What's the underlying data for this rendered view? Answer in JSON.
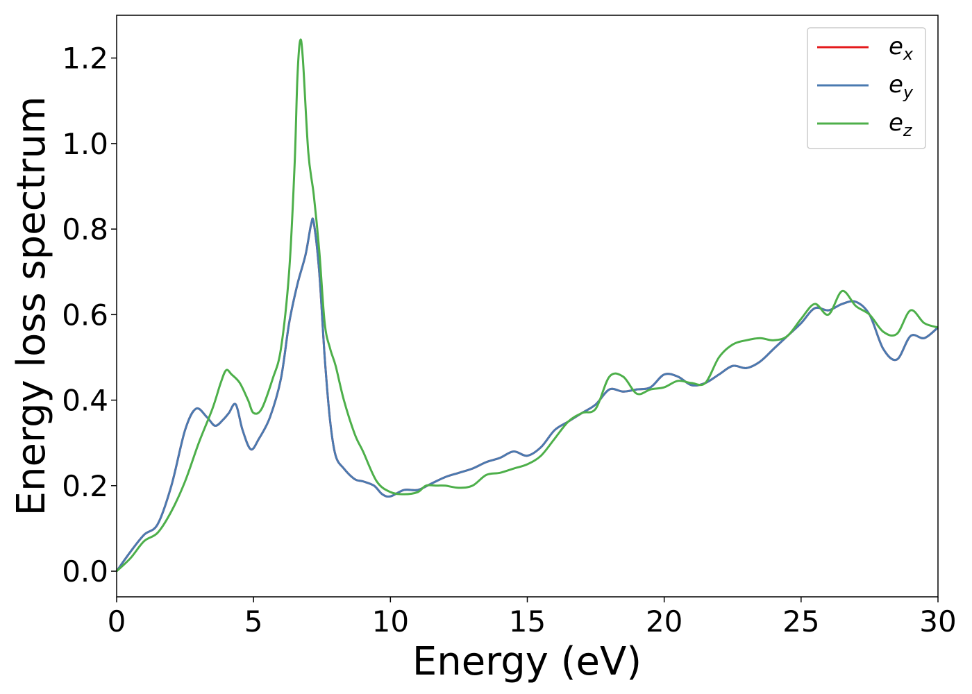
{
  "chart_data": {
    "type": "line",
    "title": "",
    "xlabel": "Energy (eV)",
    "ylabel": "Energy loss spectrum",
    "xlim": [
      0,
      30
    ],
    "ylim": [
      -0.06,
      1.3
    ],
    "xticks": [
      0,
      5,
      10,
      15,
      20,
      25,
      30
    ],
    "xtick_labels": [
      "0",
      "5",
      "10",
      "15",
      "20",
      "25",
      "30"
    ],
    "yticks": [
      0.0,
      0.2,
      0.4,
      0.6,
      0.8,
      1.0,
      1.2
    ],
    "ytick_labels": [
      "0.0",
      "0.2",
      "0.4",
      "0.6",
      "0.8",
      "1.0",
      "1.2"
    ],
    "grid": false,
    "legend_position": "top-right",
    "series": [
      {
        "name": "e",
        "subscript": "x",
        "color": "#e41a1c",
        "x": [
          0,
          0.5,
          1.0,
          1.5,
          2.0,
          2.5,
          2.9,
          3.3,
          3.6,
          3.9,
          4.1,
          4.35,
          4.6,
          4.9,
          5.2,
          5.6,
          6.0,
          6.3,
          6.6,
          6.9,
          7.1,
          7.2,
          7.4,
          7.6,
          7.8,
          8.0,
          8.3,
          8.7,
          9.0,
          9.4,
          9.7,
          10.0,
          10.5,
          11.0,
          11.5,
          12.0,
          12.5,
          13.0,
          13.5,
          14.0,
          14.5,
          15.0,
          15.5,
          16.0,
          16.5,
          17.0,
          17.5,
          18.0,
          18.5,
          19.0,
          19.5,
          20.0,
          20.5,
          21.0,
          21.5,
          22.0,
          22.5,
          23.0,
          23.5,
          24.0,
          24.5,
          25.0,
          25.5,
          26.0,
          26.5,
          27.0,
          27.5,
          28.0,
          28.5,
          29.0,
          29.5,
          30.0
        ],
        "y": [
          0.0,
          0.045,
          0.085,
          0.11,
          0.2,
          0.33,
          0.38,
          0.36,
          0.34,
          0.355,
          0.37,
          0.39,
          0.33,
          0.285,
          0.31,
          0.36,
          0.45,
          0.58,
          0.67,
          0.74,
          0.81,
          0.815,
          0.7,
          0.5,
          0.35,
          0.27,
          0.24,
          0.215,
          0.21,
          0.2,
          0.18,
          0.175,
          0.19,
          0.19,
          0.205,
          0.22,
          0.23,
          0.24,
          0.255,
          0.265,
          0.28,
          0.27,
          0.29,
          0.33,
          0.35,
          0.37,
          0.39,
          0.425,
          0.42,
          0.425,
          0.43,
          0.46,
          0.455,
          0.435,
          0.44,
          0.46,
          0.48,
          0.475,
          0.49,
          0.52,
          0.55,
          0.58,
          0.615,
          0.61,
          0.625,
          0.63,
          0.6,
          0.52,
          0.495,
          0.55,
          0.545,
          0.57
        ]
      },
      {
        "name": "e",
        "subscript": "y",
        "color": "#4a7ab0",
        "x": [
          0,
          0.5,
          1.0,
          1.5,
          2.0,
          2.5,
          2.9,
          3.3,
          3.6,
          3.9,
          4.1,
          4.35,
          4.6,
          4.9,
          5.2,
          5.6,
          6.0,
          6.3,
          6.6,
          6.9,
          7.1,
          7.2,
          7.4,
          7.6,
          7.8,
          8.0,
          8.3,
          8.7,
          9.0,
          9.4,
          9.7,
          10.0,
          10.5,
          11.0,
          11.5,
          12.0,
          12.5,
          13.0,
          13.5,
          14.0,
          14.5,
          15.0,
          15.5,
          16.0,
          16.5,
          17.0,
          17.5,
          18.0,
          18.5,
          19.0,
          19.5,
          20.0,
          20.5,
          21.0,
          21.5,
          22.0,
          22.5,
          23.0,
          23.5,
          24.0,
          24.5,
          25.0,
          25.5,
          26.0,
          26.5,
          27.0,
          27.5,
          28.0,
          28.5,
          29.0,
          29.5,
          30.0
        ],
        "y": [
          0.0,
          0.045,
          0.085,
          0.11,
          0.2,
          0.33,
          0.38,
          0.36,
          0.34,
          0.355,
          0.37,
          0.39,
          0.33,
          0.285,
          0.31,
          0.36,
          0.45,
          0.58,
          0.67,
          0.74,
          0.81,
          0.815,
          0.7,
          0.5,
          0.35,
          0.27,
          0.24,
          0.215,
          0.21,
          0.2,
          0.18,
          0.175,
          0.19,
          0.19,
          0.205,
          0.22,
          0.23,
          0.24,
          0.255,
          0.265,
          0.28,
          0.27,
          0.29,
          0.33,
          0.35,
          0.37,
          0.39,
          0.425,
          0.42,
          0.425,
          0.43,
          0.46,
          0.455,
          0.435,
          0.44,
          0.46,
          0.48,
          0.475,
          0.49,
          0.52,
          0.55,
          0.58,
          0.615,
          0.61,
          0.625,
          0.63,
          0.6,
          0.52,
          0.495,
          0.55,
          0.545,
          0.57
        ]
      },
      {
        "name": "e",
        "subscript": "z",
        "color": "#4daf4a",
        "x": [
          0,
          0.5,
          1.0,
          1.5,
          2.0,
          2.5,
          3.0,
          3.5,
          3.8,
          4.0,
          4.2,
          4.5,
          4.8,
          5.0,
          5.3,
          5.7,
          6.0,
          6.3,
          6.5,
          6.6,
          6.7,
          6.8,
          7.0,
          7.2,
          7.4,
          7.6,
          7.8,
          8.0,
          8.3,
          8.7,
          9.0,
          9.5,
          10.0,
          10.5,
          11.0,
          11.3,
          11.7,
          12.0,
          12.5,
          13.0,
          13.5,
          14.0,
          14.5,
          15.0,
          15.5,
          16.0,
          16.5,
          17.0,
          17.5,
          18.0,
          18.5,
          19.0,
          19.5,
          20.0,
          20.5,
          21.0,
          21.5,
          22.0,
          22.5,
          23.0,
          23.5,
          24.0,
          24.5,
          25.0,
          25.5,
          26.0,
          26.5,
          27.0,
          27.5,
          28.0,
          28.5,
          29.0,
          29.5,
          30.0
        ],
        "y": [
          0.0,
          0.03,
          0.07,
          0.09,
          0.14,
          0.21,
          0.3,
          0.38,
          0.44,
          0.47,
          0.46,
          0.44,
          0.4,
          0.37,
          0.38,
          0.45,
          0.52,
          0.7,
          0.95,
          1.15,
          1.24,
          1.2,
          0.98,
          0.88,
          0.75,
          0.58,
          0.52,
          0.48,
          0.4,
          0.32,
          0.28,
          0.21,
          0.185,
          0.18,
          0.185,
          0.2,
          0.2,
          0.2,
          0.195,
          0.2,
          0.225,
          0.23,
          0.24,
          0.25,
          0.27,
          0.31,
          0.35,
          0.37,
          0.38,
          0.455,
          0.455,
          0.415,
          0.425,
          0.43,
          0.445,
          0.44,
          0.44,
          0.5,
          0.53,
          0.54,
          0.545,
          0.54,
          0.55,
          0.59,
          0.625,
          0.6,
          0.655,
          0.62,
          0.6,
          0.56,
          0.555,
          0.61,
          0.58,
          0.57
        ]
      }
    ]
  }
}
